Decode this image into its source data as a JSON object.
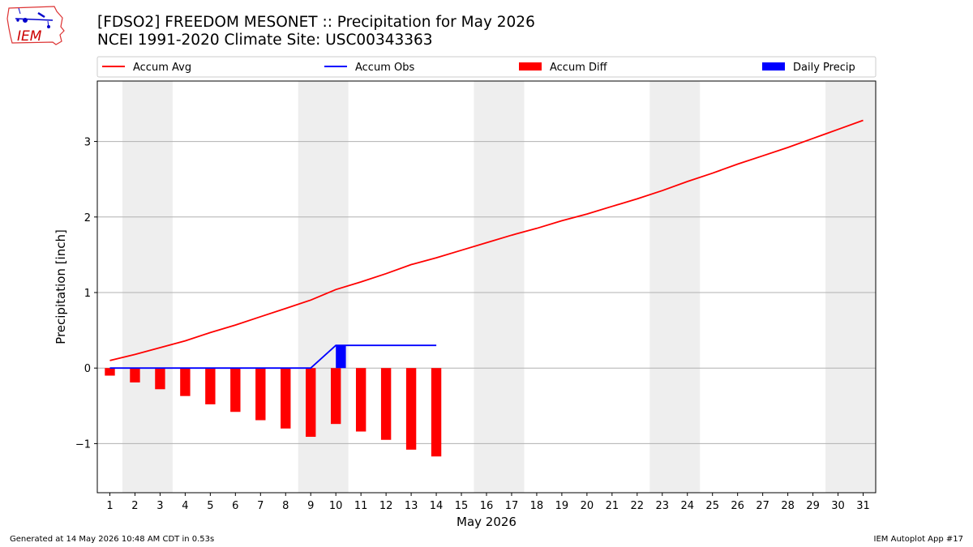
{
  "logo": {
    "text": "IEM"
  },
  "chart_data": {
    "type": "bar",
    "title": "[FDSO2] FREEDOM MESONET :: Precipitation for May 2026",
    "subtitle": "NCEI 1991-2020 Climate Site: USC00343363",
    "xlabel": "May 2026",
    "ylabel": "Precipitation [inch]",
    "ylim": [
      -1.65,
      3.8
    ],
    "xlim": [
      0.5,
      31.5
    ],
    "yticks": [
      -1,
      0,
      1,
      2,
      3
    ],
    "ytick_labels": [
      "−1",
      "0",
      "1",
      "2",
      "3"
    ],
    "xticks": [
      1,
      2,
      3,
      4,
      5,
      6,
      7,
      8,
      9,
      10,
      11,
      12,
      13,
      14,
      15,
      16,
      17,
      18,
      19,
      20,
      21,
      22,
      23,
      24,
      25,
      26,
      27,
      28,
      29,
      30,
      31
    ],
    "grid": "horizontal",
    "legend_placement": "top",
    "weekend_shading": [
      [
        1.5,
        3.5
      ],
      [
        8.5,
        10.5
      ],
      [
        15.5,
        17.5
      ],
      [
        22.5,
        24.5
      ],
      [
        29.5,
        31.5
      ]
    ],
    "series": [
      {
        "name": "Accum Avg",
        "kind": "line",
        "color": "#ff0000",
        "x": [
          1,
          2,
          3,
          4,
          5,
          6,
          7,
          8,
          9,
          10,
          11,
          12,
          13,
          14,
          15,
          16,
          17,
          18,
          19,
          20,
          21,
          22,
          23,
          24,
          25,
          26,
          27,
          28,
          29,
          30,
          31
        ],
        "values": [
          0.1,
          0.18,
          0.27,
          0.36,
          0.47,
          0.57,
          0.68,
          0.79,
          0.9,
          1.04,
          1.14,
          1.25,
          1.37,
          1.46,
          1.56,
          1.66,
          1.76,
          1.85,
          1.95,
          2.04,
          2.14,
          2.24,
          2.35,
          2.47,
          2.58,
          2.7,
          2.81,
          2.92,
          3.04,
          3.16,
          3.28
        ]
      },
      {
        "name": "Accum Obs",
        "kind": "line",
        "color": "#0000ff",
        "x": [
          1,
          2,
          3,
          4,
          5,
          6,
          7,
          8,
          9,
          10,
          11,
          12,
          13,
          14
        ],
        "values": [
          0,
          0,
          0,
          0,
          0,
          0,
          0,
          0,
          0,
          0.3,
          0.3,
          0.3,
          0.3,
          0.3
        ]
      },
      {
        "name": "Accum Diff",
        "kind": "bar",
        "color": "#ff0000",
        "x": [
          1,
          2,
          3,
          4,
          5,
          6,
          7,
          8,
          9,
          10,
          11,
          12,
          13,
          14
        ],
        "values": [
          -0.1,
          -0.19,
          -0.28,
          -0.37,
          -0.48,
          -0.58,
          -0.69,
          -0.8,
          -0.91,
          -0.74,
          -0.84,
          -0.95,
          -1.08,
          -1.17
        ]
      },
      {
        "name": "Daily Precip",
        "kind": "bar",
        "color": "#0000ff",
        "x": [
          10
        ],
        "values": [
          0.3
        ]
      }
    ]
  },
  "footer": {
    "left": "Generated at 14 May 2026 10:48 AM CDT in 0.53s",
    "right": "IEM Autoplot App #17"
  }
}
